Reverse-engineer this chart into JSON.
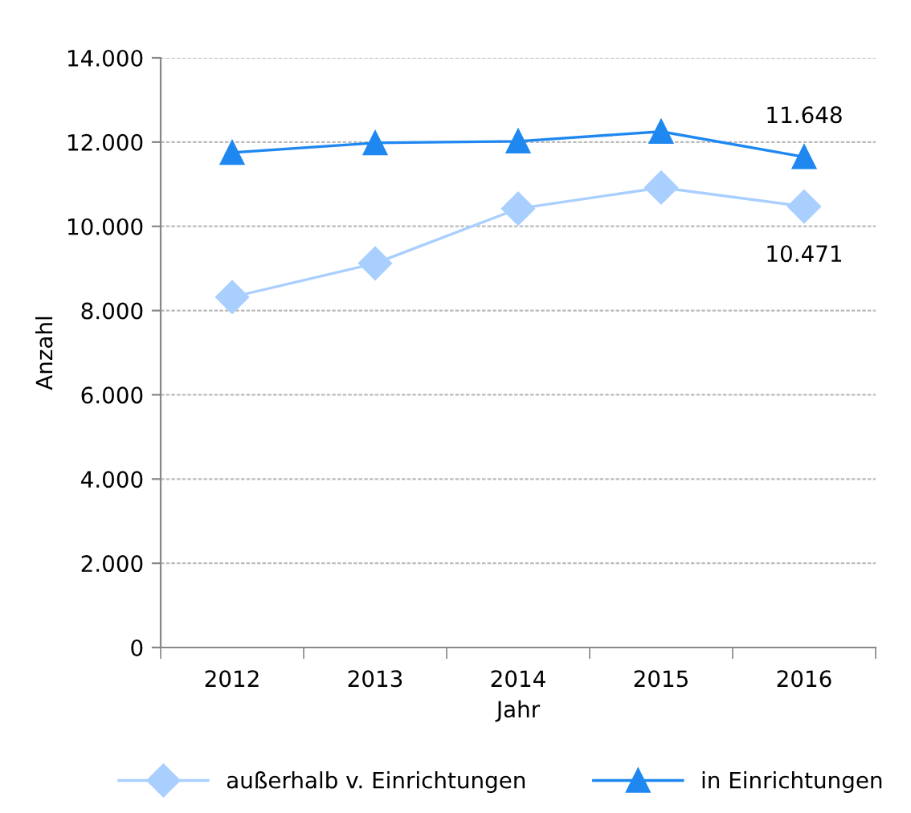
{
  "chart_data": {
    "type": "line",
    "xlabel": "Jahr",
    "ylabel": "Anzahl",
    "categories": [
      "2012",
      "2013",
      "2014",
      "2015",
      "2016"
    ],
    "series": [
      {
        "name": "außerhalb v. Einrichtungen",
        "color": "#a9cfff",
        "marker": "diamond",
        "values": [
          8320,
          9120,
          10420,
          10920,
          10471
        ]
      },
      {
        "name": "in Einrichtungen",
        "color": "#1e88f0",
        "marker": "triangle",
        "values": [
          11750,
          11980,
          12020,
          12250,
          11648
        ]
      }
    ],
    "ylim": [
      0,
      14000
    ],
    "yticks": [
      0,
      {
        "value": 2000,
        "label": "2.000"
      },
      {
        "value": 4000,
        "label": "4.000"
      },
      {
        "value": 6000,
        "label": "6.000"
      },
      {
        "value": 8000,
        "label": "8.000"
      },
      {
        "value": 10000,
        "label": "10.000"
      },
      {
        "value": 12000,
        "label": "12.000"
      },
      {
        "value": 14000,
        "label": "14.000"
      }
    ],
    "annotations": [
      {
        "text": "11.648",
        "x": "2016",
        "y": 11648
      },
      {
        "text": "10.471",
        "x": "2016",
        "y": 10471
      }
    ],
    "grid": "y",
    "legend": "bottom",
    "line_style": "solid"
  }
}
